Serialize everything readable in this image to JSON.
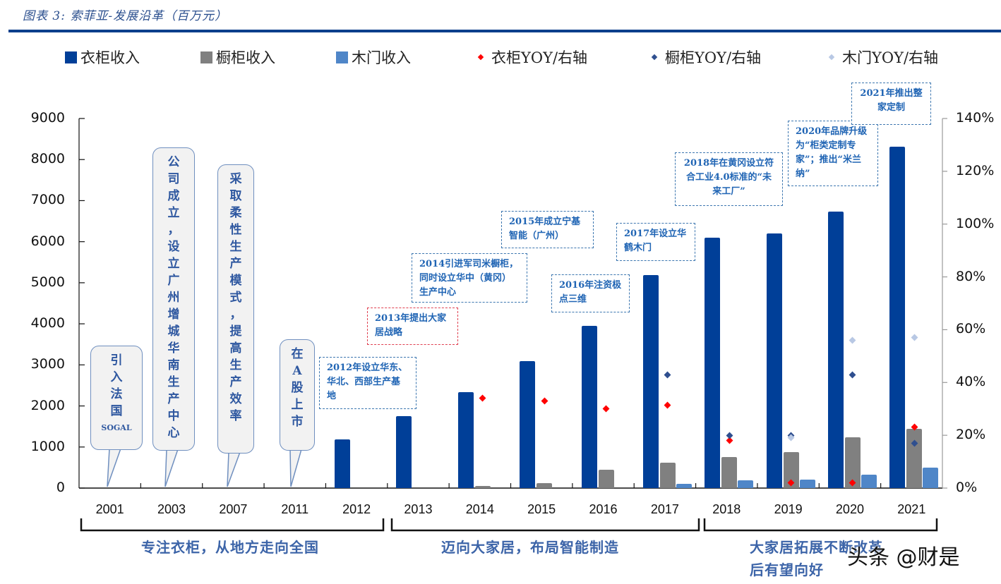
{
  "header": {
    "title": "图表 3:  索菲亚-发展沿革（百万元）"
  },
  "legend": [
    {
      "label": "衣柜收入",
      "color": "#003f98",
      "type": "bar"
    },
    {
      "label": "橱柜收入",
      "color": "#808080",
      "type": "bar"
    },
    {
      "label": "木门收入",
      "color": "#4f86c8",
      "type": "bar"
    },
    {
      "label": "衣柜YOY/右轴",
      "color": "#ff0000",
      "type": "marker"
    },
    {
      "label": "橱柜YOY/右轴",
      "color": "#2f4f8f",
      "type": "marker"
    },
    {
      "label": "木门YOY/右轴",
      "color": "#b8c8e4",
      "type": "marker"
    }
  ],
  "axes": {
    "left_ticks": [
      "9000",
      "8000",
      "7000",
      "6000",
      "5000",
      "4000",
      "3000",
      "2000",
      "1000",
      "0"
    ],
    "right_ticks": [
      "140%",
      "120%",
      "100%",
      "80%",
      "60%",
      "40%",
      "20%",
      "0%"
    ]
  },
  "bubbles": [
    {
      "year": "2001",
      "lines": [
        "引",
        "入",
        "法",
        "国"
      ],
      "extra": "SOGAL"
    },
    {
      "year": "2003",
      "lines": [
        "公",
        "司",
        "成",
        "立",
        "，",
        "设",
        "立",
        "广",
        "州",
        "增",
        "城",
        "华",
        "南",
        "生",
        "产",
        "中",
        "心"
      ]
    },
    {
      "year": "2007",
      "lines": [
        "采",
        "取",
        "柔",
        "性",
        "生",
        "产",
        "模",
        "式",
        "，",
        "提",
        "高",
        "生",
        "产",
        "效",
        "率"
      ]
    },
    {
      "year": "2011",
      "lines": [
        "在",
        "A",
        "股",
        "上",
        "市"
      ]
    }
  ],
  "notes": [
    {
      "year": "2012",
      "text": "2012年设立华东、华北、西部生产基地"
    },
    {
      "year": "2013",
      "text": "2013年提出大家居战略"
    },
    {
      "year": "2014",
      "text": "2014引进军司米橱柜，同时设立华中（黄冈）生产中心"
    },
    {
      "year": "2015",
      "text": "2015年成立宁基智能（广州）"
    },
    {
      "year": "2016",
      "text": "2016年注资极点三维"
    },
    {
      "year": "2017",
      "text": "2017年设立华鹤木门"
    },
    {
      "year": "2018",
      "text": "2018年在黄冈设立符合工业4.0标准的“未来工厂”"
    },
    {
      "year": "2020",
      "text": "2020年品牌升级为“柜类定制专家”；推出“米兰纳”"
    },
    {
      "year": "2021",
      "text": "2021年推出整家定制"
    }
  ],
  "eras": [
    {
      "label": "专注衣柜，从地方走向全国",
      "range": "2001-2012"
    },
    {
      "label": "迈向大家居，布局智能制造",
      "range": "2013-2017"
    },
    {
      "label": "大家居拓展不断改革后有望向好",
      "range": "2018-2021"
    }
  ],
  "watermark": "头条 @财是",
  "chart_data": {
    "type": "bar",
    "title": "索菲亚-发展沿革（百万元）",
    "xlabel": "",
    "ylabel": "百万元",
    "ylim": [
      0,
      9000
    ],
    "y2lim": [
      0,
      1.4
    ],
    "categories": [
      "2001",
      "2003",
      "2007",
      "2011",
      "2012",
      "2013",
      "2014",
      "2015",
      "2016",
      "2017",
      "2018",
      "2019",
      "2020",
      "2021"
    ],
    "series": [
      {
        "name": "衣柜收入",
        "type": "bar",
        "axis": "left",
        "values": [
          null,
          null,
          null,
          null,
          1185,
          1750,
          2330,
          3100,
          3950,
          5190,
          6100,
          6200,
          6730,
          8310
        ]
      },
      {
        "name": "橱柜收入",
        "type": "bar",
        "axis": "left",
        "values": [
          null,
          null,
          null,
          null,
          null,
          null,
          50,
          125,
          440,
          620,
          750,
          880,
          1240,
          1440
        ]
      },
      {
        "name": "木门收入",
        "type": "bar",
        "axis": "left",
        "values": [
          null,
          null,
          null,
          null,
          null,
          null,
          null,
          null,
          null,
          100,
          190,
          200,
          320,
          500
        ]
      },
      {
        "name": "衣柜YOY/右轴",
        "type": "scatter",
        "axis": "right",
        "values": [
          null,
          null,
          null,
          null,
          null,
          null,
          0.34,
          0.33,
          0.3,
          0.315,
          0.18,
          0.02,
          0.02,
          0.23
        ]
      },
      {
        "name": "橱柜YOY/右轴",
        "type": "scatter",
        "axis": "right",
        "values": [
          null,
          null,
          null,
          null,
          null,
          null,
          null,
          null,
          null,
          0.43,
          0.2,
          0.2,
          0.43,
          0.17
        ]
      },
      {
        "name": "木门YOY/右轴",
        "type": "scatter",
        "axis": "right",
        "values": [
          null,
          null,
          null,
          null,
          null,
          null,
          null,
          null,
          null,
          null,
          null,
          0.19,
          0.56,
          0.57
        ]
      }
    ],
    "grid": false,
    "legend_position": "top"
  }
}
